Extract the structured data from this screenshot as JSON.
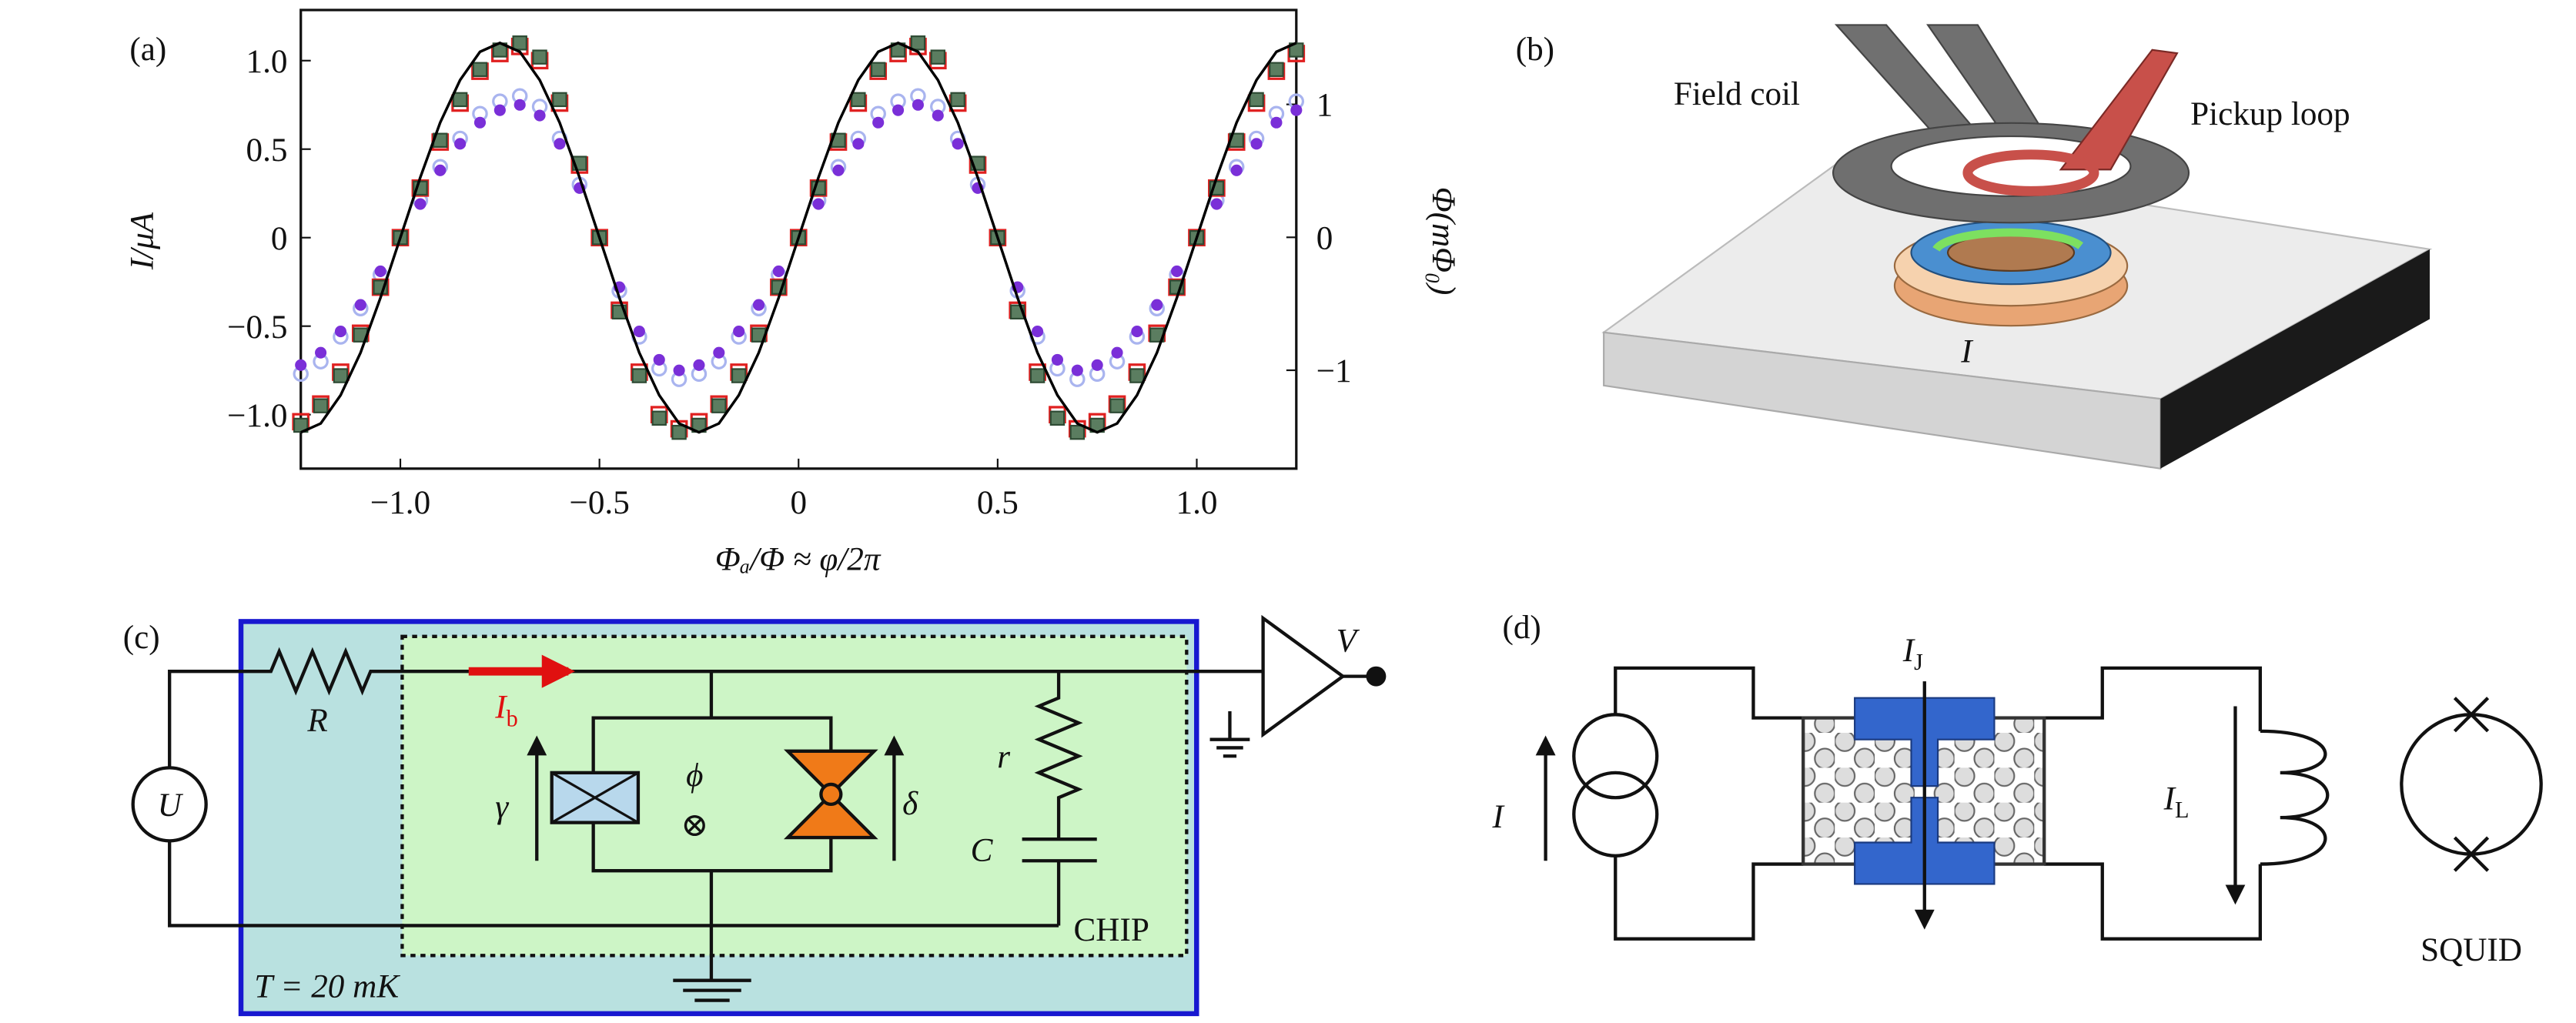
{
  "chart_data": {
    "type": "scatter",
    "panel_label": "(a)",
    "x_label": "Φₐ/Φ ≈ φ/2π",
    "y_label": "I/μA",
    "y2_label": "Φ(mΦ₀)",
    "xlim": [
      -1.25,
      1.25
    ],
    "ylim": [
      -1.305,
      1.286
    ],
    "y2lim": [
      -1.74,
      1.71
    ],
    "xticks": [
      {
        "value": -1,
        "label": "−1.0"
      },
      {
        "value": -0.5,
        "label": "−0.5"
      },
      0,
      0.5,
      {
        "value": 1,
        "label": "1.0"
      }
    ],
    "yticks": [
      {
        "value": 1,
        "label": "1.0"
      },
      0.5,
      0,
      {
        "value": -0.5,
        "label": "−0.5"
      },
      {
        "value": -1,
        "label": "−1.0"
      }
    ],
    "y2ticks": [
      1,
      0,
      {
        "value": -1,
        "label": "−1"
      }
    ],
    "x": [
      -1.25,
      -1.2,
      -1.15,
      -1.1,
      -1.05,
      -1,
      -0.95,
      -0.9,
      -0.85,
      -0.8,
      -0.75,
      -0.7,
      -0.65,
      -0.6,
      -0.55,
      -0.5,
      -0.45,
      -0.4,
      -0.35,
      -0.3,
      -0.25,
      -0.2,
      -0.15,
      -0.1,
      -0.05,
      0,
      0.05,
      0.1,
      0.15,
      0.2,
      0.25,
      0.3,
      0.35,
      0.4,
      0.45,
      0.5,
      0.55,
      0.6,
      0.65,
      0.7,
      0.75,
      0.8,
      0.85,
      0.9,
      0.95,
      1,
      1.05,
      1.1,
      1.15,
      1.2,
      1.25
    ],
    "series": [
      {
        "marker": "circle-open",
        "color": "#a9b4ef",
        "values": [
          -0.77,
          -0.7,
          -0.56,
          -0.4,
          -0.21,
          0,
          0.21,
          0.4,
          0.56,
          0.7,
          0.77,
          0.8,
          0.74,
          0.56,
          0.3,
          0,
          -0.3,
          -0.56,
          -0.74,
          -0.8,
          -0.77,
          -0.7,
          -0.56,
          -0.4,
          -0.21,
          0,
          0.21,
          0.4,
          0.56,
          0.7,
          0.77,
          0.8,
          0.74,
          0.56,
          0.3,
          0,
          -0.3,
          -0.56,
          -0.74,
          -0.8,
          -0.77,
          -0.7,
          -0.56,
          -0.4,
          -0.21,
          0,
          0.21,
          0.4,
          0.56,
          0.7,
          0.77
        ]
      },
      {
        "marker": "circle",
        "color": "#7a2fd8",
        "values": [
          -0.72,
          -0.65,
          -0.53,
          -0.38,
          -0.19,
          0,
          0.19,
          0.38,
          0.53,
          0.65,
          0.72,
          0.75,
          0.69,
          0.53,
          0.28,
          0,
          -0.28,
          -0.53,
          -0.69,
          -0.75,
          -0.72,
          -0.65,
          -0.53,
          -0.38,
          -0.19,
          0,
          0.19,
          0.38,
          0.53,
          0.65,
          0.72,
          0.75,
          0.69,
          0.53,
          0.28,
          0,
          -0.28,
          -0.53,
          -0.69,
          -0.75,
          -0.72,
          -0.65,
          -0.53,
          -0.38,
          -0.19,
          0,
          0.19,
          0.38,
          0.53,
          0.65,
          0.72
        ]
      },
      {
        "marker": "square-open",
        "color": "#e02020",
        "values": [
          -1.04,
          -0.94,
          -0.76,
          -0.54,
          -0.28,
          0,
          0.28,
          0.54,
          0.76,
          0.94,
          1.04,
          1.08,
          1.0,
          0.76,
          0.41,
          0,
          -0.41,
          -0.76,
          -1.0,
          -1.08,
          -1.04,
          -0.94,
          -0.76,
          -0.54,
          -0.28,
          0,
          0.28,
          0.54,
          0.76,
          0.94,
          1.04,
          1.08,
          1.0,
          0.76,
          0.41,
          0,
          -0.41,
          -0.76,
          -1.0,
          -1.08,
          -1.04,
          -0.94,
          -0.76,
          -0.54,
          -0.28,
          0,
          0.28,
          0.54,
          0.76,
          0.94,
          1.04
        ]
      },
      {
        "marker": "square",
        "color": "#5b7d60",
        "values": [
          -1.06,
          -0.95,
          -0.78,
          -0.55,
          -0.28,
          0,
          0.28,
          0.55,
          0.78,
          0.95,
          1.06,
          1.1,
          1.02,
          0.78,
          0.42,
          0,
          -0.42,
          -0.78,
          -1.02,
          -1.1,
          -1.06,
          -0.95,
          -0.78,
          -0.55,
          -0.28,
          0,
          0.28,
          0.55,
          0.78,
          0.95,
          1.06,
          1.1,
          1.02,
          0.78,
          0.42,
          0,
          -0.42,
          -0.78,
          -1.02,
          -1.1,
          -1.06,
          -0.95,
          -0.78,
          -0.55,
          -0.28,
          0,
          0.28,
          0.55,
          0.78,
          0.95,
          1.06
        ]
      },
      {
        "marker": "line",
        "color": "#000000",
        "values": [
          -1.1,
          -1.05,
          -0.89,
          -0.65,
          -0.34,
          0,
          0.34,
          0.65,
          0.89,
          1.05,
          1.1,
          1.05,
          0.89,
          0.65,
          0.34,
          0,
          -0.34,
          -0.65,
          -0.89,
          -1.05,
          -1.1,
          -1.05,
          -0.89,
          -0.65,
          -0.34,
          0,
          0.34,
          0.65,
          0.89,
          1.05,
          1.1,
          1.05,
          0.89,
          0.65,
          0.34,
          0,
          -0.34,
          -0.65,
          -0.89,
          -1.05,
          -1.1,
          -1.05,
          -0.89,
          -0.65,
          -0.34,
          0,
          0.34,
          0.65,
          0.89,
          1.05,
          1.1
        ]
      }
    ]
  },
  "panels": {
    "b": {
      "label": "(b)",
      "field_coil": "Field coil",
      "pickup_loop": "Pickup loop",
      "current": "I"
    },
    "c": {
      "label": "(c)",
      "resistor": "R",
      "source": "U",
      "bias": {
        "main": "I",
        "sub": "b"
      },
      "gamma": "γ",
      "phi": "ϕ",
      "flux": "⊗",
      "delta": "δ",
      "r": "r",
      "capacitor": "C",
      "chip": "CHIP",
      "voltage": "V",
      "temperature": "T = 20 mK"
    },
    "d": {
      "label": "(d)",
      "junction_current": {
        "main": "I",
        "sub": "J"
      },
      "current": "I",
      "loop_current": {
        "main": "I",
        "sub": "L"
      },
      "squid": "SQUID"
    }
  }
}
